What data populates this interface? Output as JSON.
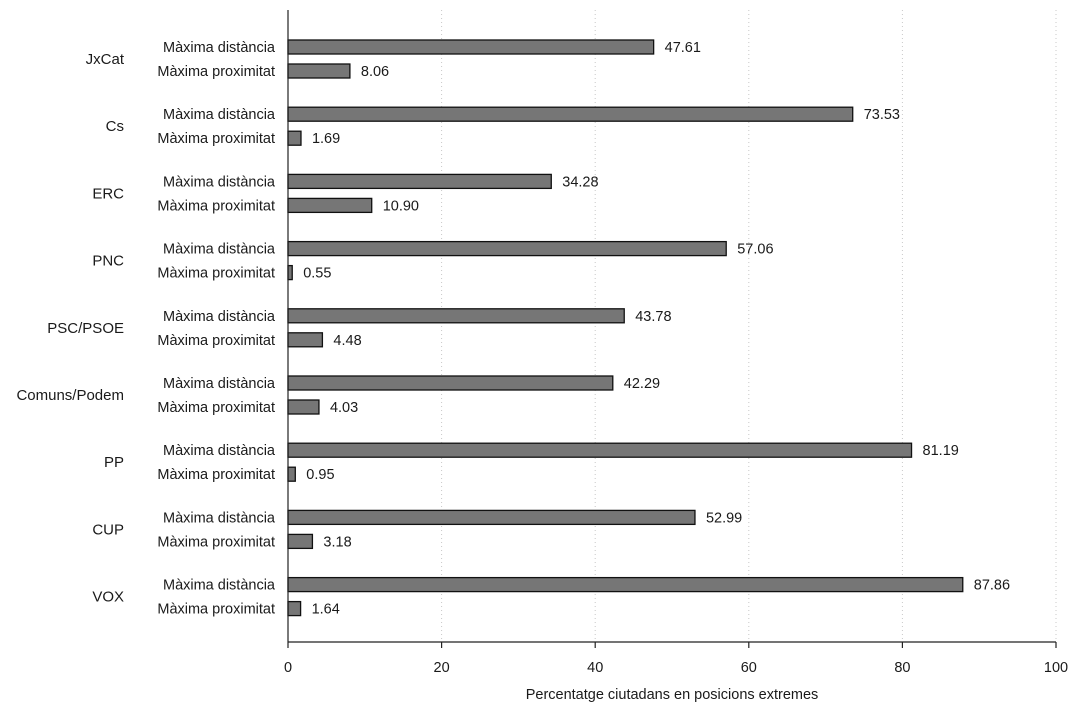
{
  "chart_data": {
    "type": "bar",
    "orientation": "horizontal",
    "title": "",
    "xlabel": "Percentatge ciutadans en posicions extremes",
    "ylabel": "",
    "xlim": [
      0,
      100
    ],
    "xticks": [
      0,
      20,
      40,
      60,
      80,
      100
    ],
    "grid": true,
    "legend": "none",
    "bar_color": "#767676",
    "series_names": [
      "Màxima distància",
      "Màxima proximitat"
    ],
    "categories": [
      {
        "party": "JxCat",
        "values": [
          47.61,
          8.06
        ],
        "labels": [
          "47.61",
          "8.06"
        ]
      },
      {
        "party": "Cs",
        "values": [
          73.53,
          1.69
        ],
        "labels": [
          "73.53",
          "1.69"
        ]
      },
      {
        "party": "ERC",
        "values": [
          34.28,
          10.9
        ],
        "labels": [
          "34.28",
          "10.90"
        ]
      },
      {
        "party": "PNC",
        "values": [
          57.06,
          0.55
        ],
        "labels": [
          "57.06",
          "0.55"
        ]
      },
      {
        "party": "PSC/PSOE",
        "values": [
          43.78,
          4.48
        ],
        "labels": [
          "43.78",
          "4.48"
        ]
      },
      {
        "party": "Comuns/Podem",
        "values": [
          42.29,
          4.03
        ],
        "labels": [
          "42.29",
          "4.03"
        ]
      },
      {
        "party": "PP",
        "values": [
          81.19,
          0.95
        ],
        "labels": [
          "81.19",
          "0.95"
        ]
      },
      {
        "party": "CUP",
        "values": [
          52.99,
          3.18
        ],
        "labels": [
          "52.99",
          "3.18"
        ]
      },
      {
        "party": "VOX",
        "values": [
          87.86,
          1.64
        ],
        "labels": [
          "87.86",
          "1.64"
        ]
      }
    ]
  }
}
